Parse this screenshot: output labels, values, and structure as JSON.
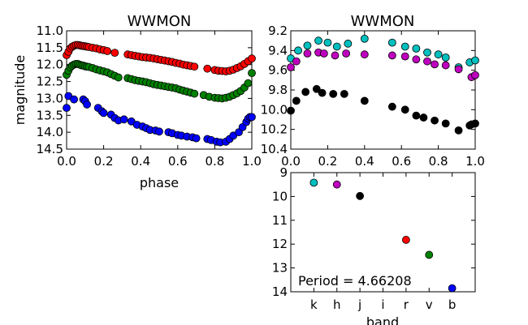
{
  "chart_data": [
    {
      "type": "scatter",
      "title": "WWMON",
      "xlabel": "phase",
      "ylabel": "magnitude",
      "xlim": [
        0.0,
        1.0
      ],
      "ylim": [
        11.0,
        14.5
      ],
      "y_inverted": true,
      "xticks": [
        "0.0",
        "0.2",
        "0.4",
        "0.6",
        "0.8",
        "1.0"
      ],
      "yticks": [
        "11.0",
        "11.5",
        "12.0",
        "12.5",
        "13.0",
        "13.5",
        "14.0",
        "14.5"
      ],
      "grid": false,
      "series": [
        {
          "color": "#ff0000",
          "x": [
            0.0,
            0.01,
            0.02,
            0.03,
            0.04,
            0.05,
            0.06,
            0.07,
            0.08,
            0.09,
            0.1,
            0.11,
            0.12,
            0.14,
            0.16,
            0.18,
            0.2,
            0.22,
            0.26,
            0.33,
            0.35,
            0.37,
            0.39,
            0.41,
            0.43,
            0.45,
            0.47,
            0.49,
            0.51,
            0.53,
            0.55,
            0.57,
            0.59,
            0.61,
            0.63,
            0.65,
            0.67,
            0.69,
            0.76,
            0.8,
            0.82,
            0.84,
            0.86,
            0.88,
            0.9,
            0.92,
            0.94,
            0.96,
            0.98,
            1.0
          ],
          "y": [
            11.72,
            11.62,
            11.52,
            11.47,
            11.44,
            11.42,
            11.42,
            11.43,
            11.44,
            11.45,
            11.46,
            11.47,
            11.48,
            11.5,
            11.52,
            11.55,
            11.57,
            11.6,
            11.65,
            11.7,
            11.72,
            11.74,
            11.76,
            11.78,
            11.79,
            11.8,
            11.82,
            11.84,
            11.86,
            11.88,
            11.9,
            11.92,
            11.95,
            11.97,
            12.0,
            12.02,
            12.04,
            12.06,
            12.12,
            12.16,
            12.18,
            12.19,
            12.2,
            12.18,
            12.15,
            12.1,
            12.05,
            11.98,
            11.9,
            11.82
          ]
        },
        {
          "color": "#008000",
          "x": [
            0.0,
            0.01,
            0.02,
            0.03,
            0.04,
            0.05,
            0.06,
            0.07,
            0.08,
            0.09,
            0.1,
            0.11,
            0.12,
            0.14,
            0.16,
            0.18,
            0.2,
            0.22,
            0.24,
            0.26,
            0.28,
            0.33,
            0.35,
            0.37,
            0.39,
            0.41,
            0.43,
            0.45,
            0.47,
            0.49,
            0.51,
            0.53,
            0.55,
            0.57,
            0.59,
            0.61,
            0.63,
            0.65,
            0.67,
            0.69,
            0.74,
            0.77,
            0.8,
            0.82,
            0.84,
            0.86,
            0.88,
            0.9,
            0.92,
            0.94,
            0.96,
            0.98,
            1.0
          ],
          "y": [
            12.3,
            12.18,
            12.08,
            12.03,
            12.0,
            11.98,
            11.98,
            12.0,
            12.02,
            12.03,
            12.05,
            12.06,
            12.07,
            12.1,
            12.14,
            12.17,
            12.2,
            12.23,
            12.28,
            12.33,
            12.38,
            12.4,
            12.43,
            12.46,
            12.48,
            12.5,
            12.52,
            12.55,
            12.58,
            12.6,
            12.62,
            12.64,
            12.66,
            12.68,
            12.7,
            12.74,
            12.77,
            12.8,
            12.83,
            12.86,
            12.9,
            12.95,
            12.98,
            12.99,
            13.0,
            12.98,
            12.95,
            12.9,
            12.85,
            12.78,
            12.68,
            12.55,
            12.25
          ]
        },
        {
          "color": "#0000ff",
          "x": [
            0.0,
            0.01,
            0.04,
            0.09,
            0.1,
            0.11,
            0.17,
            0.19,
            0.2,
            0.24,
            0.26,
            0.28,
            0.31,
            0.35,
            0.38,
            0.41,
            0.43,
            0.45,
            0.48,
            0.5,
            0.55,
            0.57,
            0.6,
            0.62,
            0.65,
            0.68,
            0.7,
            0.76,
            0.78,
            0.81,
            0.83,
            0.86,
            0.88,
            0.9,
            0.93,
            0.95,
            0.97,
            0.98,
            0.99,
            1.0
          ],
          "y": [
            13.28,
            12.93,
            13.03,
            13.03,
            13.08,
            13.18,
            13.28,
            13.38,
            13.43,
            13.48,
            13.58,
            13.65,
            13.62,
            13.68,
            13.78,
            13.83,
            13.88,
            13.93,
            13.95,
            13.98,
            14.0,
            14.03,
            14.08,
            14.1,
            14.13,
            14.15,
            14.18,
            14.2,
            14.23,
            14.28,
            14.3,
            14.28,
            14.2,
            14.1,
            14.0,
            13.85,
            13.7,
            13.6,
            13.55,
            13.55
          ]
        }
      ]
    },
    {
      "type": "scatter",
      "title": "WWMON",
      "xlabel": "",
      "ylabel": "",
      "xlim": [
        0.0,
        1.0
      ],
      "ylim": [
        9.2,
        10.4
      ],
      "y_inverted": true,
      "xticks": [
        "0.0",
        "0.2",
        "0.4",
        "0.6",
        "0.8",
        "1.0"
      ],
      "yticks": [
        "9.2",
        "9.4",
        "9.6",
        "9.8",
        "10.0",
        "10.2",
        "10.4"
      ],
      "grid": false,
      "series": [
        {
          "color": "#00bfbf",
          "x": [
            0.0,
            0.04,
            0.09,
            0.15,
            0.2,
            0.25,
            0.31,
            0.4,
            0.55,
            0.62,
            0.68,
            0.74,
            0.8,
            0.84,
            0.91,
            0.97,
            1.0
          ],
          "y": [
            9.48,
            9.4,
            9.35,
            9.3,
            9.32,
            9.36,
            9.33,
            9.28,
            9.32,
            9.36,
            9.38,
            9.42,
            9.44,
            9.47,
            9.57,
            9.52,
            9.5
          ]
        },
        {
          "color": "#bf00bf",
          "x": [
            0.0,
            0.03,
            0.09,
            0.15,
            0.18,
            0.24,
            0.3,
            0.4,
            0.55,
            0.62,
            0.68,
            0.74,
            0.78,
            0.84,
            0.91,
            0.98,
            1.0
          ],
          "y": [
            9.57,
            9.51,
            9.43,
            9.42,
            9.43,
            9.45,
            9.43,
            9.44,
            9.45,
            9.46,
            9.49,
            9.51,
            9.54,
            9.55,
            9.59,
            9.67,
            9.65
          ]
        },
        {
          "color": "#000000",
          "x": [
            0.0,
            0.03,
            0.08,
            0.14,
            0.17,
            0.23,
            0.29,
            0.4,
            0.55,
            0.62,
            0.68,
            0.72,
            0.78,
            0.84,
            0.91,
            0.97,
            0.98,
            1.0
          ],
          "y": [
            10.01,
            9.91,
            9.82,
            9.79,
            9.83,
            9.84,
            9.84,
            9.91,
            9.97,
            10.0,
            10.06,
            10.08,
            10.11,
            10.14,
            10.21,
            10.16,
            10.15,
            10.14
          ]
        }
      ]
    },
    {
      "type": "scatter",
      "title": "",
      "xlabel": "band",
      "ylabel": "",
      "xlim": [
        0.0,
        8.0
      ],
      "ylim": [
        9,
        14
      ],
      "y_inverted": true,
      "categories": [
        "k",
        "h",
        "j",
        "i",
        "r",
        "v",
        "b"
      ],
      "yticks": [
        "9",
        "10",
        "11",
        "12",
        "13",
        "14"
      ],
      "grid": false,
      "points": [
        {
          "category": "k",
          "y": 9.42,
          "color": "#00bfbf"
        },
        {
          "category": "h",
          "y": 9.5,
          "color": "#bf00bf"
        },
        {
          "category": "j",
          "y": 9.98,
          "color": "#000000"
        },
        {
          "category": "r",
          "y": 11.82,
          "color": "#ff0000"
        },
        {
          "category": "v",
          "y": 12.45,
          "color": "#008000"
        },
        {
          "category": "b",
          "y": 13.85,
          "color": "#0000ff"
        }
      ],
      "annotation": "Period = 4.66208"
    }
  ]
}
